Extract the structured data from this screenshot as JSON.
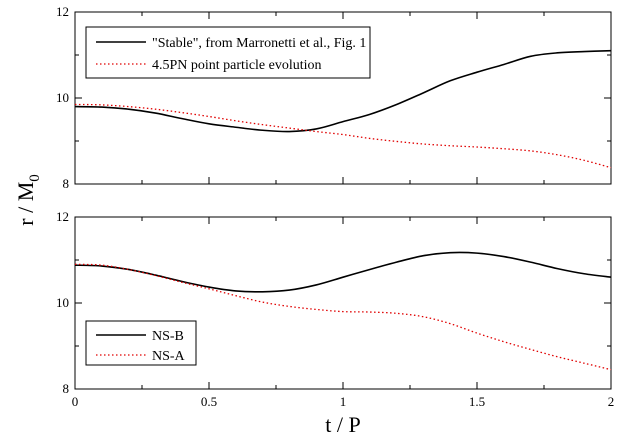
{
  "chart_data": [
    {
      "type": "line",
      "xlabel": "",
      "ylabel": "r / M0",
      "xlim": [
        0,
        2
      ],
      "ylim": [
        8,
        12
      ],
      "xticks": [
        0,
        0.5,
        1,
        1.5,
        2
      ],
      "yticks": [
        8,
        10,
        12
      ],
      "legend_position": "top-left",
      "series": [
        {
          "name": "\"Stable\", from Marronetti et al., Fig. 1",
          "color": "#000000",
          "style": "solid",
          "x": [
            0,
            0.1,
            0.2,
            0.3,
            0.4,
            0.5,
            0.6,
            0.7,
            0.8,
            0.9,
            1.0,
            1.1,
            1.2,
            1.3,
            1.4,
            1.5,
            1.6,
            1.7,
            1.8,
            1.9,
            2.0
          ],
          "y": [
            9.8,
            9.79,
            9.74,
            9.65,
            9.52,
            9.4,
            9.32,
            9.25,
            9.22,
            9.28,
            9.45,
            9.62,
            9.85,
            10.12,
            10.4,
            10.6,
            10.78,
            10.97,
            11.05,
            11.08,
            11.1
          ]
        },
        {
          "name": "4.5PN point particle evolution",
          "color": "#e00000",
          "style": "dotted",
          "x": [
            0,
            0.1,
            0.2,
            0.3,
            0.4,
            0.5,
            0.6,
            0.7,
            0.8,
            0.9,
            1.0,
            1.1,
            1.2,
            1.3,
            1.4,
            1.5,
            1.6,
            1.7,
            1.8,
            1.9,
            2.0
          ],
          "y": [
            9.85,
            9.84,
            9.8,
            9.74,
            9.66,
            9.57,
            9.47,
            9.38,
            9.3,
            9.22,
            9.15,
            9.06,
            8.99,
            8.93,
            8.89,
            8.86,
            8.82,
            8.77,
            8.68,
            8.55,
            8.38
          ]
        }
      ]
    },
    {
      "type": "line",
      "xlabel": "t / P",
      "ylabel": "",
      "xlim": [
        0,
        2
      ],
      "ylim": [
        8,
        12
      ],
      "xticks": [
        0,
        0.5,
        1,
        1.5,
        2
      ],
      "xtick_labels": [
        "0",
        "0.5",
        "1",
        "1.5",
        "2"
      ],
      "yticks": [
        8,
        10,
        12
      ],
      "legend_position": "bottom-left",
      "series": [
        {
          "name": "NS-B",
          "color": "#000000",
          "style": "solid",
          "x": [
            0,
            0.1,
            0.2,
            0.3,
            0.4,
            0.5,
            0.6,
            0.7,
            0.8,
            0.9,
            1.0,
            1.1,
            1.2,
            1.3,
            1.4,
            1.5,
            1.6,
            1.7,
            1.8,
            1.9,
            2.0
          ],
          "y": [
            10.88,
            10.86,
            10.78,
            10.65,
            10.5,
            10.37,
            10.28,
            10.26,
            10.3,
            10.42,
            10.6,
            10.78,
            10.95,
            11.1,
            11.17,
            11.16,
            11.08,
            10.95,
            10.8,
            10.68,
            10.6
          ]
        },
        {
          "name": "NS-A",
          "color": "#e00000",
          "style": "dotted",
          "x": [
            0,
            0.1,
            0.2,
            0.3,
            0.4,
            0.5,
            0.6,
            0.7,
            0.8,
            0.9,
            1.0,
            1.1,
            1.2,
            1.3,
            1.4,
            1.5,
            1.6,
            1.7,
            1.8,
            1.9,
            2.0
          ],
          "y": [
            10.9,
            10.88,
            10.78,
            10.64,
            10.48,
            10.33,
            10.17,
            10.02,
            9.92,
            9.85,
            9.8,
            9.79,
            9.76,
            9.68,
            9.52,
            9.3,
            9.1,
            8.92,
            8.75,
            8.6,
            8.45
          ]
        }
      ]
    }
  ],
  "ylabel_main": "r / M",
  "ylabel_sub": "0"
}
